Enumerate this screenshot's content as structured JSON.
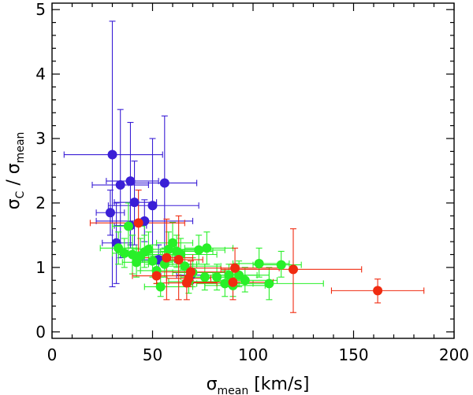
{
  "chart_data": {
    "type": "scatter",
    "title": "",
    "xlabel": {
      "main": "σ",
      "sub": "mean",
      "rest": " [km/s]"
    },
    "ylabel": {
      "main": "σ",
      "sub": "C",
      "mid": " / ",
      "main2": "σ",
      "sub2": "mean"
    },
    "xlim": [
      0,
      200
    ],
    "ylim": [
      -0.1,
      5.1
    ],
    "x_ticks": [
      0,
      50,
      100,
      150,
      200
    ],
    "y_ticks": [
      0,
      1,
      2,
      3,
      4,
      5
    ],
    "x_tick_labels": [
      "0",
      "50",
      "100",
      "150",
      "200"
    ],
    "y_tick_labels": [
      "0",
      "1",
      "2",
      "3",
      "4",
      "5"
    ],
    "series": [
      {
        "name": "blue",
        "color": "#3a1fd6",
        "points": [
          {
            "x": 30,
            "y": 2.75,
            "xlo": 6,
            "xhi": 55,
            "ylo": 0.7,
            "yhi": 4.82
          },
          {
            "x": 29,
            "y": 1.85,
            "xlo": 22,
            "xhi": 36,
            "ylo": 1.5,
            "yhi": 2.2
          },
          {
            "x": 34,
            "y": 2.28,
            "xlo": 20,
            "xhi": 48,
            "ylo": 1.15,
            "yhi": 3.45
          },
          {
            "x": 39,
            "y": 2.34,
            "xlo": 27,
            "xhi": 53,
            "ylo": 1.35,
            "yhi": 3.25
          },
          {
            "x": 41,
            "y": 2.01,
            "xlo": 31,
            "xhi": 52,
            "ylo": 1.35,
            "yhi": 2.65
          },
          {
            "x": 39,
            "y": 1.65,
            "xlo": 31,
            "xhi": 47,
            "ylo": 1.3,
            "yhi": 2.0
          },
          {
            "x": 46,
            "y": 1.72,
            "xlo": 22,
            "xhi": 70,
            "ylo": 1.4,
            "yhi": 2.05
          },
          {
            "x": 50,
            "y": 1.96,
            "xlo": 28,
            "xhi": 73,
            "ylo": 1.15,
            "yhi": 3.0
          },
          {
            "x": 56,
            "y": 2.31,
            "xlo": 38,
            "xhi": 72,
            "ylo": 1.3,
            "yhi": 3.35
          },
          {
            "x": 32,
            "y": 1.38,
            "xlo": 25,
            "xhi": 40,
            "ylo": 0.75,
            "yhi": 2.0
          },
          {
            "x": 53,
            "y": 1.12,
            "xlo": 45,
            "xhi": 61,
            "ylo": 0.9,
            "yhi": 1.35
          },
          {
            "x": 69,
            "y": 0.88,
            "xlo": 62,
            "xhi": 76,
            "ylo": 0.75,
            "yhi": 1.05
          }
        ]
      },
      {
        "name": "green",
        "color": "#28f028",
        "points": [
          {
            "x": 33,
            "y": 1.3,
            "xlo": 24,
            "xhi": 42,
            "ylo": 1.05,
            "yhi": 1.55
          },
          {
            "x": 36,
            "y": 1.22,
            "xlo": 30,
            "xhi": 50,
            "ylo": 1.0,
            "yhi": 1.45
          },
          {
            "x": 38,
            "y": 1.64,
            "xlo": 30,
            "xhi": 46,
            "ylo": 1.3,
            "yhi": 2.0
          },
          {
            "x": 40,
            "y": 1.2,
            "xlo": 33,
            "xhi": 55,
            "ylo": 0.9,
            "yhi": 1.5
          },
          {
            "x": 42,
            "y": 1.08,
            "xlo": 35,
            "xhi": 60,
            "ylo": 0.85,
            "yhi": 1.3
          },
          {
            "x": 44,
            "y": 1.18,
            "xlo": 36,
            "xhi": 62,
            "ylo": 0.95,
            "yhi": 1.45
          },
          {
            "x": 46,
            "y": 1.24,
            "xlo": 38,
            "xhi": 58,
            "ylo": 1.0,
            "yhi": 1.5
          },
          {
            "x": 48,
            "y": 1.28,
            "xlo": 40,
            "xhi": 56,
            "ylo": 1.05,
            "yhi": 1.55
          },
          {
            "x": 50,
            "y": 1.1,
            "xlo": 42,
            "xhi": 65,
            "ylo": 0.85,
            "yhi": 1.35
          },
          {
            "x": 52,
            "y": 0.95,
            "xlo": 44,
            "xhi": 68,
            "ylo": 0.75,
            "yhi": 1.15
          },
          {
            "x": 54,
            "y": 0.7,
            "xlo": 46,
            "xhi": 70,
            "ylo": 0.55,
            "yhi": 0.85
          },
          {
            "x": 56,
            "y": 1.05,
            "xlo": 48,
            "xhi": 72,
            "ylo": 0.85,
            "yhi": 1.3
          },
          {
            "x": 58,
            "y": 1.28,
            "xlo": 50,
            "xhi": 74,
            "ylo": 1.05,
            "yhi": 1.55
          },
          {
            "x": 60,
            "y": 1.38,
            "xlo": 52,
            "xhi": 70,
            "ylo": 1.1,
            "yhi": 1.7
          },
          {
            "x": 62,
            "y": 1.25,
            "xlo": 54,
            "xhi": 80,
            "ylo": 1.0,
            "yhi": 1.5
          },
          {
            "x": 64,
            "y": 1.2,
            "xlo": 56,
            "xhi": 82,
            "ylo": 0.95,
            "yhi": 1.45
          },
          {
            "x": 66,
            "y": 1.02,
            "xlo": 56,
            "xhi": 84,
            "ylo": 0.8,
            "yhi": 1.25
          },
          {
            "x": 68,
            "y": 0.78,
            "xlo": 58,
            "xhi": 86,
            "ylo": 0.6,
            "yhi": 0.95
          },
          {
            "x": 70,
            "y": 0.92,
            "xlo": 60,
            "xhi": 88,
            "ylo": 0.7,
            "yhi": 1.15
          },
          {
            "x": 73,
            "y": 1.27,
            "xlo": 62,
            "xhi": 86,
            "ylo": 1.05,
            "yhi": 1.5
          },
          {
            "x": 77,
            "y": 1.3,
            "xlo": 66,
            "xhi": 90,
            "ylo": 1.05,
            "yhi": 1.55
          },
          {
            "x": 76,
            "y": 0.85,
            "xlo": 64,
            "xhi": 92,
            "ylo": 0.65,
            "yhi": 1.05
          },
          {
            "x": 82,
            "y": 0.85,
            "xlo": 70,
            "xhi": 96,
            "ylo": 0.65,
            "yhi": 1.05
          },
          {
            "x": 86,
            "y": 0.75,
            "xlo": 72,
            "xhi": 100,
            "ylo": 0.55,
            "yhi": 0.95
          },
          {
            "x": 88,
            "y": 0.88,
            "xlo": 76,
            "xhi": 102,
            "ylo": 0.7,
            "yhi": 1.05
          },
          {
            "x": 90,
            "y": 0.72,
            "xlo": 76,
            "xhi": 106,
            "ylo": 0.55,
            "yhi": 0.9
          },
          {
            "x": 93,
            "y": 0.88,
            "xlo": 80,
            "xhi": 108,
            "ylo": 0.7,
            "yhi": 1.1
          },
          {
            "x": 96,
            "y": 0.8,
            "xlo": 82,
            "xhi": 112,
            "ylo": 0.62,
            "yhi": 1.0
          },
          {
            "x": 103,
            "y": 1.06,
            "xlo": 90,
            "xhi": 118,
            "ylo": 0.85,
            "yhi": 1.3
          },
          {
            "x": 114,
            "y": 1.04,
            "xlo": 100,
            "xhi": 124,
            "ylo": 0.85,
            "yhi": 1.25
          },
          {
            "x": 108,
            "y": 0.75,
            "xlo": 85,
            "xhi": 135,
            "ylo": 0.5,
            "yhi": 1.0
          }
        ]
      },
      {
        "name": "red",
        "color": "#f02b10",
        "points": [
          {
            "x": 43,
            "y": 1.69,
            "xlo": 19,
            "xhi": 66,
            "ylo": 1.15,
            "yhi": 2.2
          },
          {
            "x": 57,
            "y": 1.15,
            "xlo": 44,
            "xhi": 70,
            "ylo": 0.5,
            "yhi": 1.75
          },
          {
            "x": 63,
            "y": 1.12,
            "xlo": 51,
            "xhi": 75,
            "ylo": 0.5,
            "yhi": 1.8
          },
          {
            "x": 52,
            "y": 0.87,
            "xlo": 40,
            "xhi": 68,
            "ylo": 0.75,
            "yhi": 1.0
          },
          {
            "x": 67,
            "y": 0.76,
            "xlo": 52,
            "xhi": 82,
            "ylo": 0.5,
            "yhi": 1.0
          },
          {
            "x": 68,
            "y": 0.83,
            "xlo": 57,
            "xhi": 79,
            "ylo": 0.7,
            "yhi": 1.0
          },
          {
            "x": 69,
            "y": 0.93,
            "xlo": 52,
            "xhi": 86,
            "ylo": 0.8,
            "yhi": 1.1
          },
          {
            "x": 90,
            "y": 0.77,
            "xlo": 70,
            "xhi": 110,
            "ylo": 0.5,
            "yhi": 1.05
          },
          {
            "x": 91,
            "y": 0.99,
            "xlo": 67,
            "xhi": 113,
            "ylo": 0.7,
            "yhi": 1.3
          },
          {
            "x": 120,
            "y": 0.97,
            "xlo": 84,
            "xhi": 154,
            "ylo": 0.3,
            "yhi": 1.6
          },
          {
            "x": 162,
            "y": 0.64,
            "xlo": 139,
            "xhi": 185,
            "ylo": 0.45,
            "yhi": 0.82
          }
        ]
      }
    ]
  }
}
